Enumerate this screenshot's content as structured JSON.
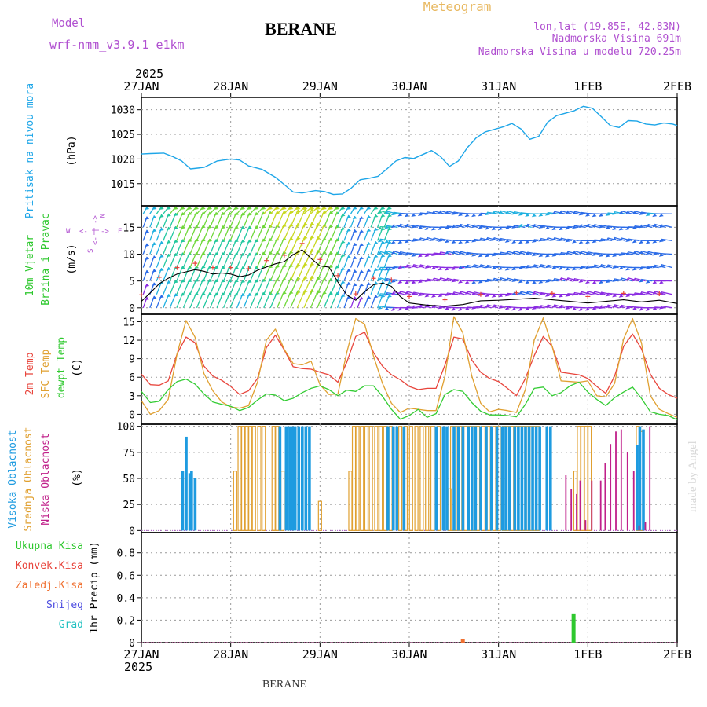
{
  "header": {
    "model_label": "Model",
    "model_name": "wrf-nmm_v3.9.1 e1km",
    "station": "BERANE",
    "app_title": "Meteogram",
    "coords": "lon,lat (19.85E, 42.83N)",
    "elevation": "Nadmorska Visina 691m",
    "model_elevation": "Nadmorska Visina u modelu 720.25m",
    "watermark": "made by Angel",
    "footer_station": "BERANE"
  },
  "colors": {
    "pressure": "#1ea6e8",
    "t2m": "#e8453c",
    "sfc": "#e0a030",
    "dew": "#33cc33",
    "high_cloud": "#1e9be0",
    "mid_cloud": "#e0a030",
    "low_cloud": "#c0208a",
    "total_precip": "#2ec82e",
    "conv_precip": "#e8453c",
    "frz_precip": "#f07030",
    "snow": "#4a4ae0",
    "graupel": "#20c0c0",
    "accent_purple": "#b050d0",
    "title_orange": "#e8b860"
  },
  "chart_data": [
    {
      "type": "line",
      "title": "",
      "ylabel": [
        "Pritisak na nivou mora",
        "(hPa)"
      ],
      "ylim": [
        1010.5,
        1032.5
      ],
      "yticks": [
        1015,
        1020,
        1025,
        1030
      ],
      "xlim": [
        0,
        6
      ],
      "grid": true,
      "xticks_top": {
        "year": "2025",
        "labels": [
          "27JAN",
          "28JAN",
          "29JAN",
          "30JAN",
          "31JAN",
          "1FEB",
          "2FEB"
        ]
      },
      "series": [
        {
          "name": "Pritisak",
          "color_key": "pressure",
          "x": [
            0,
            0.1,
            0.25,
            0.35,
            0.45,
            0.55,
            0.7,
            0.85,
            1.0,
            1.1,
            1.2,
            1.35,
            1.5,
            1.6,
            1.7,
            1.8,
            1.95,
            2.05,
            2.15,
            2.25,
            2.35,
            2.45,
            2.55,
            2.65,
            2.75,
            2.85,
            2.95,
            3.05,
            3.15,
            3.25,
            3.35,
            3.45,
            3.55,
            3.65,
            3.75,
            3.85,
            3.95,
            4.05,
            4.15,
            4.25,
            4.35,
            4.45,
            4.55,
            4.65,
            4.75,
            4.85,
            4.95,
            5.05,
            5.15,
            5.25,
            5.35,
            5.45,
            5.55,
            5.65,
            5.75,
            5.85,
            5.95,
            6.0
          ],
          "values": [
            1021,
            1021.1,
            1021.2,
            1020.5,
            1019.6,
            1018,
            1018.3,
            1019.6,
            1020,
            1019.8,
            1018.6,
            1017.9,
            1016.3,
            1014.8,
            1013.3,
            1013.1,
            1013.6,
            1013.4,
            1012.8,
            1012.9,
            1014.1,
            1015.8,
            1016.1,
            1016.5,
            1018,
            1019.6,
            1020.3,
            1020.1,
            1020.9,
            1021.7,
            1020.5,
            1018.5,
            1019.6,
            1022.3,
            1024.3,
            1025.5,
            1026,
            1026.5,
            1027.2,
            1026.1,
            1024,
            1024.6,
            1027.5,
            1028.8,
            1029.3,
            1029.8,
            1030.7,
            1030.3,
            1028.6,
            1026.8,
            1026.4,
            1027.8,
            1027.7,
            1027.1,
            1026.9,
            1027.3,
            1027.1,
            1026.8
          ]
        }
      ]
    },
    {
      "type": "line",
      "title": "",
      "ylabel": [
        "10m Vjetar",
        "Brzina i Pravac",
        "(m/s)"
      ],
      "legend_compass": [
        "W",
        "<- | ->",
        "E",
        "N",
        "S"
      ],
      "ylim": [
        -1.2,
        19
      ],
      "yticks": [
        0,
        5,
        10,
        15
      ],
      "xlim": [
        0,
        6
      ],
      "grid": true,
      "series": [
        {
          "name": "wind-speed",
          "color_key": "wind",
          "x": [
            0,
            0.1,
            0.2,
            0.3,
            0.4,
            0.5,
            0.6,
            0.7,
            0.8,
            0.9,
            1.0,
            1.1,
            1.2,
            1.3,
            1.4,
            1.5,
            1.6,
            1.7,
            1.8,
            1.9,
            2.0,
            2.1,
            2.2,
            2.3,
            2.4,
            2.5,
            2.6,
            2.7,
            2.8,
            2.9,
            3.0,
            3.2,
            3.4,
            3.6,
            3.8,
            4.0,
            4.2,
            4.4,
            4.6,
            4.8,
            5.0,
            5.2,
            5.4,
            5.6,
            5.8,
            6.0
          ],
          "values": [
            1.2,
            2.8,
            4.5,
            5.5,
            6.3,
            6.7,
            7.1,
            6.8,
            6.3,
            6.5,
            6.3,
            5.8,
            6.1,
            7.0,
            7.6,
            8.2,
            8.6,
            9.9,
            10.8,
            9.2,
            7.8,
            7.6,
            4.8,
            2.4,
            1.4,
            3.0,
            4.3,
            4.6,
            4.0,
            2.1,
            0.9,
            0.5,
            0.3,
            0.6,
            1.3,
            1.4,
            1.6,
            1.8,
            1.5,
            1.2,
            0.9,
            1.2,
            1.5,
            1.1,
            1.4,
            0.8
          ]
        }
      ]
    },
    {
      "type": "line",
      "title": "",
      "ylabel": [
        "2m Temp",
        "SFC Temp",
        "dewpt Temp",
        "(C)"
      ],
      "ylim": [
        -1.6,
        16.2
      ],
      "yticks": [
        0,
        3,
        6,
        9,
        12,
        15
      ],
      "xlim": [
        0,
        6
      ],
      "grid": true,
      "series": [
        {
          "name": "2m Temp",
          "color_key": "t2m",
          "x": [
            0,
            0.1,
            0.2,
            0.3,
            0.4,
            0.5,
            0.6,
            0.7,
            0.8,
            0.9,
            1.0,
            1.1,
            1.2,
            1.3,
            1.4,
            1.5,
            1.6,
            1.7,
            1.8,
            1.9,
            2.0,
            2.1,
            2.2,
            2.3,
            2.4,
            2.5,
            2.6,
            2.7,
            2.8,
            2.9,
            3.0,
            3.1,
            3.2,
            3.3,
            3.4,
            3.5,
            3.6,
            3.7,
            3.8,
            3.9,
            4.0,
            4.1,
            4.2,
            4.3,
            4.4,
            4.5,
            4.6,
            4.7,
            4.8,
            4.9,
            5.0,
            5.1,
            5.2,
            5.3,
            5.4,
            5.5,
            5.6,
            5.7,
            5.8,
            5.9,
            6.0
          ],
          "values": [
            6.5,
            4.8,
            4.7,
            5.4,
            9.8,
            12.5,
            11.6,
            7.8,
            6.2,
            5.5,
            4.5,
            3.2,
            3.8,
            5.8,
            10.8,
            12.8,
            10.4,
            7.7,
            7.4,
            7.3,
            6.8,
            6.4,
            5.2,
            8.4,
            12.6,
            13.3,
            10.0,
            7.8,
            6.4,
            5.6,
            4.5,
            4.0,
            4.2,
            4.2,
            8.0,
            12.5,
            12.2,
            8.8,
            6.8,
            5.8,
            5.3,
            4.2,
            3.0,
            5.8,
            9.5,
            12.6,
            11.0,
            6.8,
            6.6,
            6.4,
            5.8,
            4.5,
            3.4,
            6.2,
            11.0,
            13.0,
            10.6,
            6.5,
            4.2,
            3.2,
            2.6
          ]
        },
        {
          "name": "SFC Temp",
          "color_key": "sfc",
          "x": [
            0,
            0.1,
            0.2,
            0.3,
            0.4,
            0.5,
            0.6,
            0.7,
            0.8,
            0.9,
            1.0,
            1.1,
            1.2,
            1.3,
            1.4,
            1.5,
            1.6,
            1.7,
            1.8,
            1.9,
            2.0,
            2.1,
            2.2,
            2.3,
            2.4,
            2.5,
            2.6,
            2.7,
            2.8,
            2.9,
            3.0,
            3.1,
            3.2,
            3.3,
            3.4,
            3.5,
            3.6,
            3.7,
            3.8,
            3.9,
            4.0,
            4.1,
            4.2,
            4.3,
            4.4,
            4.5,
            4.6,
            4.7,
            4.8,
            4.9,
            5.0,
            5.1,
            5.2,
            5.3,
            5.4,
            5.5,
            5.6,
            5.7,
            5.8,
            5.9,
            6.0
          ],
          "values": [
            2.2,
            0.0,
            0.6,
            2.4,
            9.8,
            15.2,
            12.5,
            6.6,
            3.8,
            2.0,
            1.2,
            1.0,
            1.4,
            5.2,
            12.0,
            13.8,
            10.5,
            8.2,
            8.0,
            8.6,
            4.8,
            3.2,
            3.3,
            10.0,
            15.5,
            14.6,
            9.4,
            5.0,
            1.8,
            0.3,
            1.0,
            0.8,
            0.6,
            0.6,
            6.2,
            15.8,
            13.2,
            6.2,
            1.8,
            0.4,
            0.8,
            0.6,
            0.3,
            4.0,
            12.0,
            15.6,
            11.0,
            5.4,
            5.3,
            5.2,
            5.4,
            3.0,
            2.8,
            5.0,
            12.2,
            15.5,
            11.6,
            3.0,
            0.8,
            0.1,
            -0.5
          ]
        },
        {
          "name": "dewpt Temp",
          "color_key": "dew",
          "x": [
            0,
            0.1,
            0.2,
            0.3,
            0.4,
            0.5,
            0.6,
            0.7,
            0.8,
            0.9,
            1.0,
            1.1,
            1.2,
            1.3,
            1.4,
            1.5,
            1.6,
            1.7,
            1.8,
            1.9,
            2.0,
            2.1,
            2.2,
            2.3,
            2.4,
            2.5,
            2.6,
            2.7,
            2.8,
            2.9,
            3.0,
            3.1,
            3.2,
            3.3,
            3.4,
            3.5,
            3.6,
            3.7,
            3.8,
            3.9,
            4.0,
            4.1,
            4.2,
            4.3,
            4.4,
            4.5,
            4.6,
            4.7,
            4.8,
            4.9,
            5.0,
            5.1,
            5.2,
            5.3,
            5.4,
            5.5,
            5.6,
            5.7,
            5.8,
            5.9,
            6.0
          ],
          "values": [
            3.7,
            1.9,
            2.1,
            4.0,
            5.3,
            5.7,
            4.9,
            3.3,
            2.0,
            1.6,
            1.3,
            0.6,
            1.1,
            2.3,
            3.3,
            3.1,
            2.2,
            2.6,
            3.5,
            4.2,
            4.6,
            4.0,
            3.0,
            3.9,
            3.7,
            4.6,
            4.6,
            2.9,
            0.8,
            -0.8,
            -0.2,
            0.8,
            -0.5,
            0.1,
            3.2,
            4.0,
            3.7,
            1.9,
            0.5,
            -0.1,
            -0.1,
            -0.2,
            -0.4,
            1.6,
            4.2,
            4.4,
            3.0,
            3.5,
            4.6,
            5.2,
            3.6,
            2.4,
            1.4,
            2.7,
            3.6,
            4.4,
            2.6,
            0.4,
            0.0,
            -0.2,
            -0.9
          ]
        }
      ]
    },
    {
      "type": "bar",
      "title": "",
      "ylabel": [
        "Visoka Oblacnost",
        "Srednja Oblacnost",
        "Niska Oblacnost",
        "(%)"
      ],
      "ylim": [
        -2,
        102
      ],
      "yticks": [
        0,
        25,
        50,
        75,
        100
      ],
      "xlim": [
        0,
        6
      ],
      "grid": true,
      "series": [
        {
          "name": "Visoka Oblacnost",
          "color_key": "high_cloud",
          "x": [
            0.46,
            0.5,
            0.54,
            0.56,
            0.6,
            1.55,
            1.62,
            1.66,
            1.69,
            1.72,
            1.76,
            1.8,
            1.84,
            1.88,
            2.76,
            2.82,
            2.86,
            2.94,
            3.3,
            3.38,
            3.42,
            3.5,
            3.55,
            3.6,
            3.66,
            3.7,
            3.74,
            3.8,
            3.86,
            3.92,
            3.98,
            4.04,
            4.08,
            4.12,
            4.18,
            4.22,
            4.26,
            4.3,
            4.34,
            4.38,
            4.42,
            4.46,
            4.54,
            4.58,
            5.55,
            5.58,
            5.62
          ],
          "values": [
            57,
            90,
            55,
            57,
            50,
            100,
            100,
            100,
            100,
            100,
            100,
            100,
            100,
            100,
            100,
            100,
            100,
            100,
            100,
            100,
            100,
            100,
            100,
            100,
            100,
            100,
            100,
            100,
            100,
            100,
            100,
            100,
            100,
            100,
            100,
            100,
            100,
            100,
            100,
            100,
            100,
            100,
            100,
            100,
            82,
            100,
            97
          ]
        },
        {
          "name": "Srednja Oblacnost",
          "color_key": "mid_cloud",
          "x": [
            1.05,
            1.1,
            1.14,
            1.18,
            1.22,
            1.26,
            1.32,
            1.37,
            1.48,
            1.52,
            1.58,
            2.0,
            2.34,
            2.38,
            2.42,
            2.47,
            2.52,
            2.57,
            2.63,
            2.68,
            2.73,
            2.79,
            2.9,
            2.96,
            3.02,
            3.08,
            3.14,
            3.2,
            3.26,
            3.33,
            3.45,
            3.48,
            3.52,
            3.57,
            3.63,
            3.68,
            3.73,
            3.77,
            3.83,
            3.89,
            3.95,
            4.0,
            4.06,
            4.1,
            4.15,
            4.2,
            4.24,
            4.28,
            4.33,
            4.37,
            4.4,
            4.44,
            4.86,
            4.9,
            4.94,
            4.98,
            5.02,
            5.56,
            5.6
          ],
          "values": [
            57,
            100,
            100,
            100,
            100,
            100,
            100,
            100,
            100,
            100,
            57,
            28,
            57,
            100,
            100,
            100,
            100,
            100,
            100,
            100,
            100,
            100,
            100,
            100,
            100,
            100,
            100,
            100,
            100,
            100,
            40,
            100,
            100,
            100,
            100,
            100,
            100,
            100,
            100,
            100,
            100,
            100,
            100,
            100,
            100,
            100,
            100,
            100,
            100,
            100,
            100,
            100,
            57,
            100,
            100,
            100,
            100,
            100,
            95
          ]
        },
        {
          "name": "Niska Oblacnost",
          "color_key": "low_cloud",
          "x": [
            4.76,
            4.82,
            4.88,
            4.92,
            4.98,
            5.05,
            5.15,
            5.2,
            5.26,
            5.32,
            5.38,
            5.45,
            5.52,
            5.58,
            5.65,
            5.7
          ],
          "values": [
            53,
            40,
            35,
            48,
            10,
            48,
            48,
            65,
            83,
            95,
            97,
            75,
            57,
            5,
            8,
            100
          ]
        }
      ]
    },
    {
      "type": "bar",
      "title": "",
      "ylabel": [
        "1hr Precip (mm)"
      ],
      "legend": [
        "Ukupna Kisa",
        "Konvek.Kisa",
        "Zaledj.Kisa",
        "Snijeg",
        "Grad"
      ],
      "ylim": [
        0,
        0.98
      ],
      "yticks": [
        0,
        0.2,
        0.4,
        0.6,
        0.8
      ],
      "xlim": [
        0,
        6
      ],
      "grid": true,
      "xticks_bottom": {
        "year": "2025",
        "labels": [
          "27JAN",
          "28JAN",
          "29JAN",
          "30JAN",
          "31JAN",
          "1FEB",
          "2FEB"
        ]
      },
      "series": [
        {
          "name": "Ukupna Kisa",
          "color_key": "total_precip",
          "x": [
            4.84
          ],
          "values": [
            0.26
          ]
        },
        {
          "name": "Zaledj.Kisa",
          "color_key": "frz_precip",
          "x": [
            3.6
          ],
          "values": [
            0.03
          ]
        }
      ]
    }
  ]
}
